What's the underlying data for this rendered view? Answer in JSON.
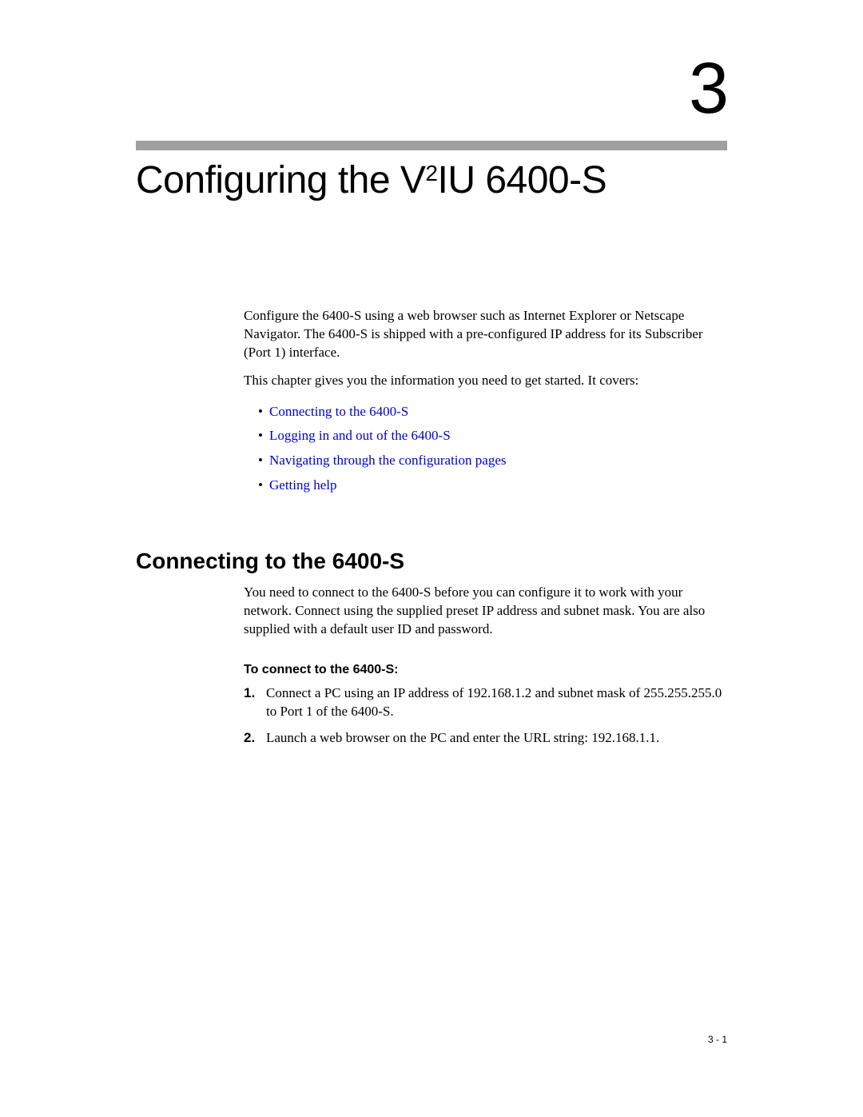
{
  "chapter_number": "3",
  "title_prefix": "Configuring the V",
  "title_super": "2",
  "title_suffix": "IU 6400-S",
  "intro_p1": "Configure the 6400-S using a web browser such as Internet Explorer or Netscape Navigator. The 6400-S is shipped with a pre-configured IP address for its Subscriber (Port 1) interface.",
  "intro_p2": "This chapter gives you the information you need to get started. It covers:",
  "links": [
    "Connecting to the 6400-S",
    "Logging in and out of the 6400-S",
    "Navigating through the configuration pages",
    "Getting help"
  ],
  "section_heading": "Connecting to the 6400-S",
  "section_p1": "You need to connect to the 6400-S before you can configure it to work with your network. Connect using the supplied preset IP address and subnet mask. You are also supplied with a default user ID and password.",
  "subhead": "To connect to the 6400-S:",
  "steps": [
    "Connect a PC using an IP address of 192.168.1.2 and subnet mask of 255.255.255.0 to Port 1 of the 6400-S.",
    "Launch a web browser on the PC and enter the URL string: 192.168.1.1."
  ],
  "footer": "3 - 1"
}
